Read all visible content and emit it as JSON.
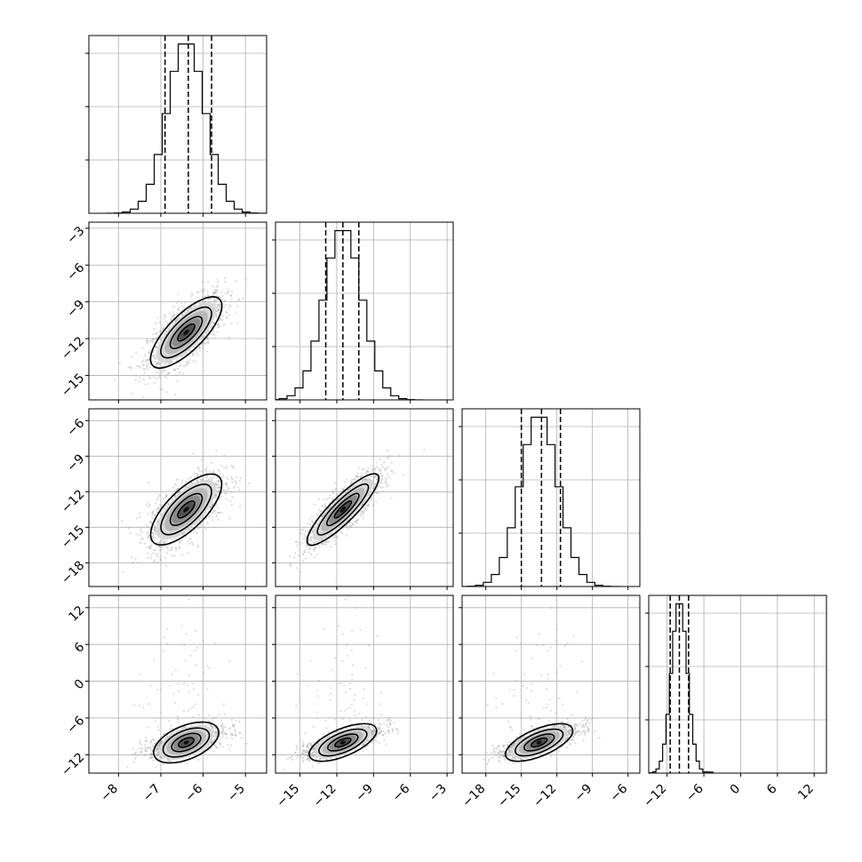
{
  "chart_data": {
    "type": "corner",
    "title": "",
    "grid": true,
    "colors": {
      "contour": "#000000",
      "points": "#9a9a9a",
      "grid": "#b0b0b0"
    },
    "params": [
      {
        "index": 0,
        "range": [
          -8.7,
          -4.5
        ],
        "ticks": [
          -8,
          -7,
          -6,
          -5
        ],
        "tick_labels": [
          "−8",
          "−7",
          "−6",
          "−5"
        ],
        "mean": -6.4,
        "sd": 0.45,
        "quantiles": [
          -6.9,
          -6.35,
          -5.8
        ]
      },
      {
        "index": 1,
        "range": [
          -17.0,
          -2.5
        ],
        "ticks": [
          -15,
          -12,
          -9,
          -6,
          -3
        ],
        "tick_labels": [
          "−15",
          "−12",
          "−9",
          "−6",
          "−3"
        ],
        "mean": -11.5,
        "sd": 1.55,
        "quantiles": [
          -12.9,
          -11.5,
          -10.2
        ]
      },
      {
        "index": 2,
        "range": [
          -20.0,
          -5.0
        ],
        "ticks": [
          -18,
          -15,
          -12,
          -9,
          -6
        ],
        "tick_labels": [
          "−18",
          "−15",
          "−12",
          "−9",
          "−6"
        ],
        "mean": -13.5,
        "sd": 1.6,
        "quantiles": [
          -15.0,
          -13.3,
          -11.7
        ]
      },
      {
        "index": 3,
        "range": [
          -15.0,
          14.0
        ],
        "ticks": [
          -12,
          -6,
          0,
          6,
          12
        ],
        "tick_labels": [
          "−12",
          "−6",
          "0",
          "6",
          "12"
        ],
        "mean": -10.0,
        "sd": 1.3,
        "quantiles": [
          -11.5,
          -10.0,
          -8.5
        ]
      }
    ],
    "pairs": [
      {
        "x": 0,
        "y": 1,
        "rho": 0.7
      },
      {
        "x": 0,
        "y": 2,
        "rho": 0.65
      },
      {
        "x": 1,
        "y": 2,
        "rho": 0.85
      },
      {
        "x": 0,
        "y": 3,
        "rho": 0.55
      },
      {
        "x": 1,
        "y": 3,
        "rho": 0.7
      },
      {
        "x": 2,
        "y": 3,
        "rho": 0.7
      }
    ]
  }
}
